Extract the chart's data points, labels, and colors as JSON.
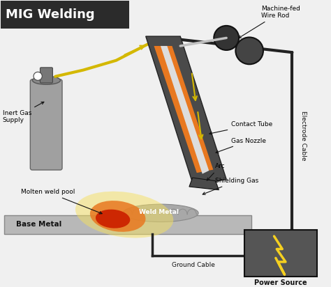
{
  "title": "MIG Welding",
  "labels": {
    "machine_fed": "Machine-fed\nWire Rod",
    "inert_gas": "Inert Gas\nSupply",
    "contact_tube": "Contact Tube",
    "gas_nozzle": "Gas Nozzle",
    "arc": "Arc",
    "shielding_gas": "Shielding Gas",
    "molten_weld": "Molten weld pool",
    "base_metal": "Base Metal",
    "weld_metal": "Weld Metal",
    "electrode_cable": "Electrode Cable",
    "ground_cable": "Ground Cable",
    "power_source": "Power Source"
  },
  "colors": {
    "bg_color": "#f0f0f0",
    "dark_gray": "#4a4a4a",
    "orange_glow": "#e87820",
    "yellow_glow": "#f5d020",
    "red_pool": "#cc2200",
    "gas_cylinder": "#a0a0a0",
    "wire_rod_color": "#c0c0c0",
    "power_box": "#555555",
    "lightning": "#f5d020",
    "base_metal_color": "#b8b8b8",
    "weld_metal_color": "#a8a8a8",
    "cable_color": "#222222",
    "arrow_color": "#d4b800",
    "title_box": "#2b2b2b"
  }
}
